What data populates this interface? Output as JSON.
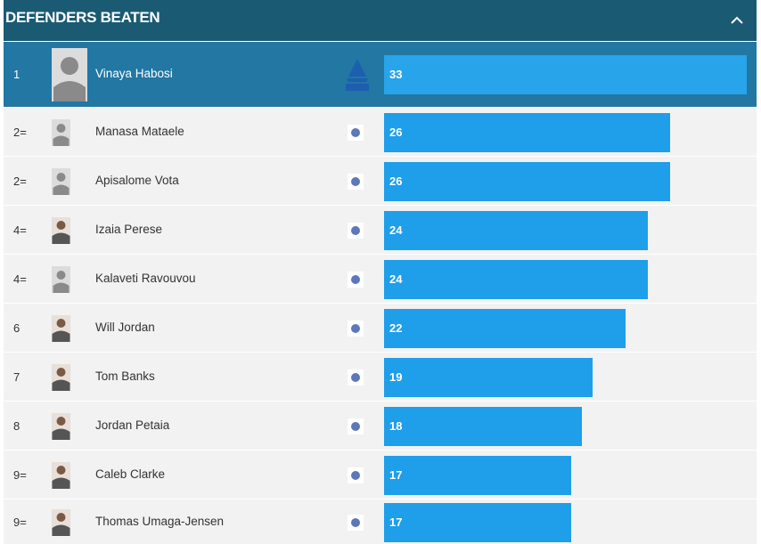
{
  "header": {
    "title": "DEFENDERS BEATEN",
    "collapse_icon": "chevron-up-icon"
  },
  "rows": [
    {
      "rank": "1",
      "name": "Vinaya Habosi",
      "value": 33,
      "value_label": "33",
      "team_icon": "drua-logo-icon",
      "photo": "placeholder"
    },
    {
      "rank": "2=",
      "name": "Manasa Mataele",
      "value": 26,
      "value_label": "26",
      "team_icon": "force-logo-icon",
      "photo": "placeholder"
    },
    {
      "rank": "2=",
      "name": "Apisalome Vota",
      "value": 26,
      "value_label": "26",
      "team_icon": "drua-logo-icon",
      "photo": "placeholder"
    },
    {
      "rank": "4=",
      "name": "Izaia Perese",
      "value": 24,
      "value_label": "24",
      "team_icon": "waratahs-logo-icon",
      "photo": "player"
    },
    {
      "rank": "4=",
      "name": "Kalaveti Ravouvou",
      "value": 24,
      "value_label": "24",
      "team_icon": "drua-logo-icon",
      "photo": "placeholder"
    },
    {
      "rank": "6",
      "name": "Will Jordan",
      "value": 22,
      "value_label": "22",
      "team_icon": "crusaders-logo-icon",
      "photo": "player"
    },
    {
      "rank": "7",
      "name": "Tom Banks",
      "value": 19,
      "value_label": "19",
      "team_icon": "brumbies-logo-icon",
      "photo": "player"
    },
    {
      "rank": "8",
      "name": "Jordan Petaia",
      "value": 18,
      "value_label": "18",
      "team_icon": "reds-logo-icon",
      "photo": "player"
    },
    {
      "rank": "9=",
      "name": "Caleb Clarke",
      "value": 17,
      "value_label": "17",
      "team_icon": "blues-logo-icon",
      "photo": "player"
    },
    {
      "rank": "9=",
      "name": "Thomas Umaga-Jensen",
      "value": 17,
      "value_label": "17",
      "team_icon": "hurricanes-logo-icon",
      "photo": "player"
    }
  ],
  "max_value": 33,
  "colors": {
    "header": "#1a5b73",
    "highlight_row": "#2277a3",
    "bar": "#1f9ee9",
    "row_bg": "#f2f2f2"
  }
}
